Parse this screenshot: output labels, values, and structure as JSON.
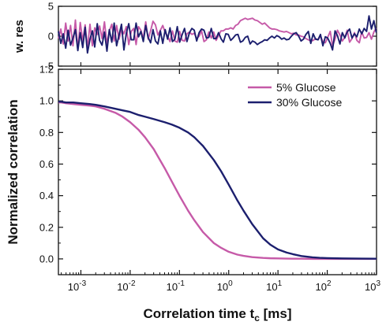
{
  "chart_data": [
    {
      "type": "line",
      "panel": "residuals",
      "ylabel": "w. res",
      "xscale": "log",
      "xlim": [
        0.00035,
        1000
      ],
      "ylim": [
        -5,
        5
      ],
      "yticks": [
        {
          "value": 5,
          "label": "5"
        },
        {
          "value": 0,
          "label": "0"
        },
        {
          "value": -5,
          "label": "-5"
        }
      ],
      "series": [
        {
          "name": "5% Glucose",
          "color": "#c65aa8",
          "x": [
            0.00035,
            0.000392,
            0.000439,
            0.000492,
            0.000551,
            0.000617,
            0.000691,
            0.000774,
            0.000867,
            0.000971,
            0.00109,
            0.00122,
            0.00136,
            0.00153,
            0.00171,
            0.00191,
            0.00215,
            0.0024,
            0.00269,
            0.00301,
            0.00338,
            0.00378,
            0.00424,
            0.00474,
            0.00531,
            0.00595,
            0.00667,
            0.00747,
            0.00836,
            0.00937,
            0.0105,
            0.0118,
            0.0132,
            0.0148,
            0.0165,
            0.0185,
            0.0207,
            0.0232,
            0.026,
            0.0291,
            0.0326,
            0.0366,
            0.041,
            0.0459,
            0.0514,
            0.0575,
            0.0644,
            0.0722,
            0.0808,
            0.0905,
            0.101,
            0.114,
            0.127,
            0.142,
            0.16,
            0.179,
            0.2,
            0.224,
            0.251,
            0.281,
            0.315,
            0.353,
            0.395,
            0.443,
            0.496,
            0.555,
            0.622,
            0.697,
            0.78,
            0.874,
            0.979,
            1.1,
            1.23,
            1.38,
            1.54,
            1.73,
            1.93,
            2.17,
            2.43,
            2.72,
            3.04,
            3.41,
            3.82,
            4.28,
            4.79,
            5.37,
            6.01,
            6.73,
            7.54,
            8.45,
            9.46,
            10.6,
            11.9,
            13.3,
            14.9,
            16.7,
            18.7,
            20.9,
            23.4,
            26.3,
            29.4,
            32.9,
            36.9,
            41.3,
            46.3,
            51.8,
            58.1,
            65.0,
            72.8,
            81.6,
            91.4,
            102,
            115,
            128,
            144,
            161,
            181,
            202,
            227,
            254,
            284,
            318,
            357,
            399,
            447,
            501,
            561,
            628,
            704,
            788,
            883,
            989
          ],
          "values": [
            -0.4,
            1.2,
            -1.3,
            2.2,
            -0.8,
            1.8,
            -1.6,
            2.7,
            -2.3,
            2.3,
            -0.8,
            1.9,
            -2.0,
            2.0,
            -1.6,
            1.4,
            0.3,
            1.7,
            -0.4,
            2.4,
            -1.3,
            0.9,
            2.0,
            -0.8,
            1.8,
            -0.5,
            1.2,
            0.4,
            1.6,
            -1.4,
            0.8,
            1.3,
            -1.4,
            1.6,
            1.0,
            -0.4,
            2.4,
            -0.5,
            0.9,
            2.5,
            1.9,
            0.2,
            1.0,
            1.8,
            0.6,
            0.0,
            -0.9,
            0.9,
            -0.8,
            -1.0,
            0.8,
            -0.7,
            -0.8,
            0.4,
            0.7,
            0.3,
            0.5,
            -0.4,
            0.0,
            0.9,
            -0.9,
            -0.6,
            0.7,
            -0.3,
            0.7,
            -0.7,
            0.1,
            0.9,
            0.9,
            1.2,
            1.2,
            1.4,
            1.2,
            1.8,
            2.0,
            2.6,
            2.8,
            3.0,
            2.8,
            2.9,
            3.0,
            2.7,
            2.6,
            2.3,
            2.0,
            2.2,
            1.8,
            1.4,
            1.2,
            1.2,
            1.1,
            0.9,
            0.8,
            0.7,
            0.8,
            0.6,
            0.4,
            0.5,
            0.2,
            0.2,
            0.0,
            -0.1,
            -0.4,
            -0.6,
            -0.8,
            -0.7,
            -0.4,
            -0.6,
            0.0,
            -0.9,
            -1.1,
            -0.2,
            0.8,
            -1.6,
            -0.5,
            1.0,
            0.2,
            -0.8,
            -0.2,
            1.0,
            -1.0,
            -0.4,
            0.6,
            -0.7,
            -1.1,
            0.7,
            -0.3,
            -0.2,
            0.6,
            -0.5,
            0.7,
            1.4
          ]
        },
        {
          "name": "30% Glucose",
          "color": "#1c1f6e",
          "x": [
            0.00035,
            0.000392,
            0.000439,
            0.000492,
            0.000551,
            0.000617,
            0.000691,
            0.000774,
            0.000867,
            0.000971,
            0.00109,
            0.00122,
            0.00136,
            0.00153,
            0.00171,
            0.00191,
            0.00215,
            0.0024,
            0.00269,
            0.00301,
            0.00338,
            0.00378,
            0.00424,
            0.00474,
            0.00531,
            0.00595,
            0.00667,
            0.00747,
            0.00836,
            0.00937,
            0.0105,
            0.0118,
            0.0132,
            0.0148,
            0.0165,
            0.0185,
            0.0207,
            0.0232,
            0.026,
            0.0291,
            0.0326,
            0.0366,
            0.041,
            0.0459,
            0.0514,
            0.0575,
            0.0644,
            0.0722,
            0.0808,
            0.0905,
            0.101,
            0.114,
            0.127,
            0.142,
            0.16,
            0.179,
            0.2,
            0.224,
            0.251,
            0.281,
            0.315,
            0.353,
            0.395,
            0.443,
            0.496,
            0.555,
            0.622,
            0.697,
            0.78,
            0.874,
            0.979,
            1.1,
            1.23,
            1.38,
            1.54,
            1.73,
            1.93,
            2.17,
            2.43,
            2.72,
            3.04,
            3.41,
            3.82,
            4.28,
            4.79,
            5.37,
            6.01,
            6.73,
            7.54,
            8.45,
            9.46,
            10.6,
            11.9,
            13.3,
            14.9,
            16.7,
            18.7,
            20.9,
            23.4,
            26.3,
            29.4,
            32.9,
            36.9,
            41.3,
            46.3,
            51.8,
            58.1,
            65.0,
            72.8,
            81.6,
            91.4,
            102,
            115,
            128,
            144,
            161,
            181,
            202,
            227,
            254,
            284,
            318,
            357,
            399,
            447,
            501,
            561,
            628,
            704,
            788,
            883,
            989
          ],
          "values": [
            0.8,
            -1.2,
            0.4,
            -2.0,
            1.0,
            -1.5,
            -0.3,
            1.1,
            -2.4,
            0.6,
            -1.9,
            1.5,
            -2.8,
            -0.5,
            0.9,
            -1.8,
            2.1,
            -0.7,
            -1.5,
            0.7,
            -2.5,
            1.1,
            -1.0,
            2.2,
            -1.6,
            0.2,
            2.0,
            -2.3,
            0.5,
            2.1,
            -0.6,
            -0.6,
            2.2,
            -0.1,
            0.8,
            -0.9,
            1.8,
            -0.2,
            -1.1,
            1.1,
            -0.8,
            -1.3,
            0.9,
            -1.2,
            1.1,
            -0.5,
            1.4,
            -0.9,
            -0.5,
            1.6,
            -1.0,
            0.3,
            1.3,
            -0.9,
            0.6,
            1.3,
            1.0,
            -0.8,
            0.6,
            1.2,
            1.0,
            -0.3,
            -0.2,
            1.3,
            -0.4,
            -0.4,
            0.6,
            -0.4,
            -1.0,
            0.4,
            0.3,
            -0.7,
            -0.3,
            0.2,
            0.3,
            -1.0,
            -0.8,
            -0.2,
            0.0,
            -1.3,
            -0.8,
            -1.0,
            -1.4,
            -1.1,
            -0.9,
            -0.6,
            -0.7,
            -0.3,
            0.0,
            -0.3,
            0.1,
            -0.1,
            -0.5,
            -0.3,
            -0.6,
            -0.5,
            0.0,
            0.4,
            0.6,
            0.0,
            -0.8,
            -0.5,
            0.3,
            0.8,
            -1.2,
            0.4,
            -0.5,
            -0.6,
            0.3,
            -1.6,
            -0.1,
            -0.3,
            -1.2,
            -2.3,
            0.9,
            0.1,
            -1.3,
            0.6,
            -0.3,
            0.7,
            1.2,
            -0.3,
            0.4,
            -0.1,
            1.2,
            0.4,
            1.3,
            0.8,
            3.4,
            1.2,
            2.6,
            0.6
          ]
        }
      ]
    },
    {
      "type": "line",
      "panel": "correlation",
      "xlabel_main": "Correlation time t",
      "xlabel_sub": "c",
      "xlabel_unit": " [ms]",
      "ylabel": "Normalized correlation",
      "xscale": "log",
      "xlim": [
        0.00035,
        1000
      ],
      "ylim": [
        -0.1,
        1.2
      ],
      "xticks": [
        {
          "value": 0.001,
          "base": "10",
          "exp": "-3"
        },
        {
          "value": 0.01,
          "base": "10",
          "exp": "-2"
        },
        {
          "value": 0.1,
          "base": "10",
          "exp": "-1"
        },
        {
          "value": 1,
          "base": "10",
          "exp": "0"
        },
        {
          "value": 10,
          "base": "10",
          "exp": "1"
        },
        {
          "value": 100,
          "base": "10",
          "exp": "2"
        },
        {
          "value": 1000,
          "base": "10",
          "exp": "3"
        }
      ],
      "yticks": [
        {
          "value": 0.0,
          "label": "0.0"
        },
        {
          "value": 0.2,
          "label": "0.2"
        },
        {
          "value": 0.4,
          "label": "0.4"
        },
        {
          "value": 0.6,
          "label": "0.6"
        },
        {
          "value": 0.8,
          "label": "0.8"
        },
        {
          "value": 1.0,
          "label": "1.0"
        },
        {
          "value": 1.2,
          "label": "1.2"
        }
      ],
      "legend_position": "top-right",
      "series": [
        {
          "name": "5% Glucose",
          "color": "#c65aa8",
          "x": [
            0.00035,
            0.0004,
            0.0005,
            0.0007,
            0.001,
            0.0015,
            0.002,
            0.003,
            0.005,
            0.007,
            0.01,
            0.015,
            0.02,
            0.03,
            0.05,
            0.07,
            0.1,
            0.15,
            0.2,
            0.3,
            0.5,
            0.7,
            1,
            1.5,
            2,
            3,
            5,
            7,
            10,
            15,
            20,
            30,
            50,
            70,
            100,
            200,
            500,
            1000
          ],
          "values": [
            0.99,
            0.99,
            0.985,
            0.98,
            0.975,
            0.97,
            0.965,
            0.95,
            0.925,
            0.9,
            0.865,
            0.815,
            0.77,
            0.695,
            0.575,
            0.49,
            0.4,
            0.305,
            0.245,
            0.17,
            0.1,
            0.07,
            0.045,
            0.027,
            0.019,
            0.011,
            0.006,
            0.004,
            0.003,
            0.002,
            0.001,
            0.001,
            0.0,
            0.0,
            0.0,
            0.0,
            0.0,
            0.0
          ]
        },
        {
          "name": "30% Glucose",
          "color": "#1c1f6e",
          "x": [
            0.00035,
            0.0004,
            0.0005,
            0.0007,
            0.001,
            0.0015,
            0.002,
            0.003,
            0.005,
            0.007,
            0.01,
            0.015,
            0.02,
            0.03,
            0.05,
            0.07,
            0.1,
            0.15,
            0.2,
            0.3,
            0.5,
            0.7,
            1,
            1.5,
            2,
            3,
            5,
            7,
            10,
            15,
            20,
            30,
            50,
            70,
            100,
            200,
            500,
            1000
          ],
          "values": [
            0.995,
            0.995,
            0.99,
            0.99,
            0.985,
            0.98,
            0.975,
            0.965,
            0.95,
            0.94,
            0.93,
            0.91,
            0.9,
            0.885,
            0.865,
            0.85,
            0.83,
            0.8,
            0.77,
            0.715,
            0.625,
            0.555,
            0.47,
            0.37,
            0.305,
            0.22,
            0.13,
            0.09,
            0.06,
            0.04,
            0.03,
            0.018,
            0.01,
            0.007,
            0.005,
            0.003,
            0.002,
            0.001
          ]
        }
      ]
    }
  ]
}
